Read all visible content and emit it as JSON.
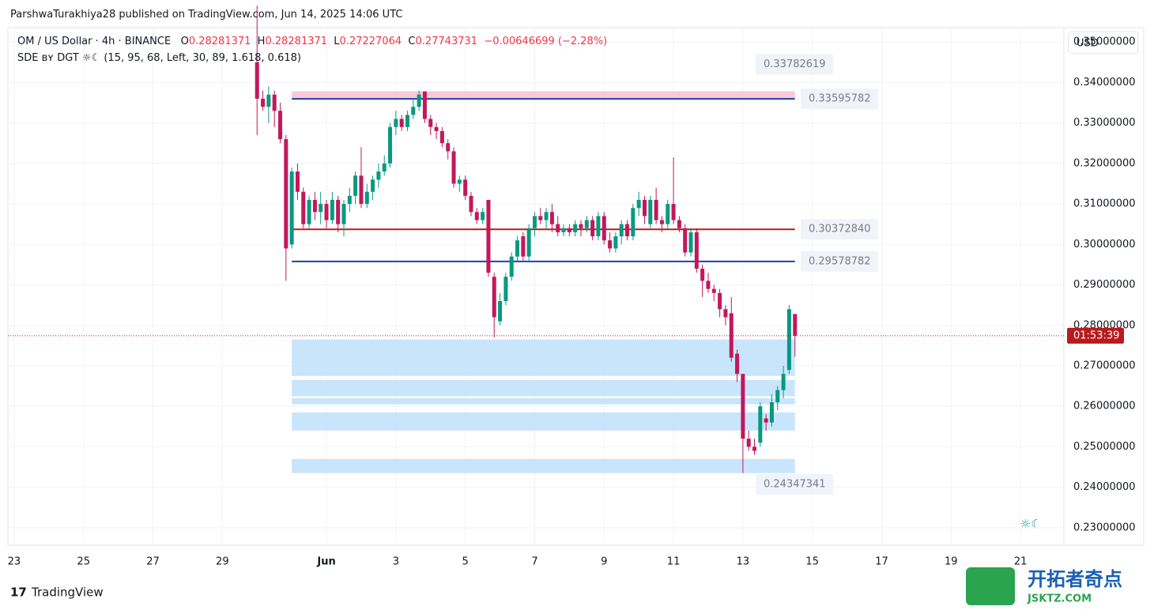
{
  "header": {
    "publisher": "ParshwaTurakhiya28 published on TradingView.com, Jun 14, 2025 14:06 UTC",
    "brand": "TradingView",
    "watermark": "开拓者奇点",
    "watermark_url": "JSKTZ.COM"
  },
  "chart_data": {
    "type": "candlestick",
    "symbol": "OM / US Dollar · 4h · BINANCE",
    "legend_labels": [
      "O",
      "H",
      "L",
      "C"
    ],
    "change": "−0.00646699 (−2.28%)",
    "indicator": "SDE ʙʏ DGT ☼☾ (15, 95, 68, Left, 30, 89, 1.618, 0.618)",
    "indicator_icon": "☼☾",
    "currency": "USD",
    "countdown": "01:53:39",
    "up_color": "#089981",
    "down_color": "#c2185b",
    "x": [
      7,
      7.167,
      7.333,
      7.5,
      7.667,
      7.833,
      8,
      8.167,
      8.333,
      8.5,
      8.667,
      8.833,
      9,
      9.167,
      9.333,
      9.5,
      9.667,
      9.833,
      10,
      10.167,
      10.333,
      10.5,
      10.667,
      10.833,
      11,
      11.167,
      11.333,
      11.5,
      11.667,
      11.833,
      12,
      12.167,
      12.333,
      12.5,
      12.667,
      12.833,
      13,
      13.167,
      13.333,
      13.5,
      13.667,
      13.833,
      14,
      14.167,
      14.333,
      14.5,
      14.667,
      14.833,
      15,
      15.167,
      15.333,
      15.5,
      15.667,
      15.833,
      16,
      16.167,
      16.333,
      16.5,
      16.667,
      16.833,
      17,
      17.167,
      17.333,
      17.5,
      17.667,
      17.833,
      18,
      18.167,
      18.333,
      18.5,
      18.667,
      18.833,
      19,
      19.167,
      19.333,
      19.5,
      19.667,
      19.833,
      20,
      20.167,
      20.333,
      20.5,
      20.667,
      20.833,
      21,
      21.167,
      21.333,
      21.5,
      21.667,
      21.833,
      22,
      22.167,
      22.333,
      22.5
    ],
    "ohlc": [
      [
        0.345,
        0.359,
        0.327,
        0.336
      ],
      [
        0.336,
        0.338,
        0.333,
        0.334
      ],
      [
        0.334,
        0.339,
        0.33,
        0.337
      ],
      [
        0.337,
        0.338,
        0.329,
        0.333
      ],
      [
        0.333,
        0.335,
        0.325,
        0.326
      ],
      [
        0.326,
        0.327,
        0.291,
        0.299
      ],
      [
        0.3,
        0.319,
        0.299,
        0.318
      ],
      [
        0.318,
        0.32,
        0.311,
        0.313
      ],
      [
        0.313,
        0.314,
        0.304,
        0.305
      ],
      [
        0.305,
        0.312,
        0.304,
        0.311
      ],
      [
        0.311,
        0.313,
        0.306,
        0.308
      ],
      [
        0.308,
        0.313,
        0.305,
        0.31
      ],
      [
        0.31,
        0.311,
        0.304,
        0.306
      ],
      [
        0.306,
        0.313,
        0.305,
        0.311
      ],
      [
        0.311,
        0.312,
        0.303,
        0.305
      ],
      [
        0.305,
        0.311,
        0.302,
        0.31
      ],
      [
        0.31,
        0.314,
        0.308,
        0.312
      ],
      [
        0.312,
        0.318,
        0.31,
        0.317
      ],
      [
        0.317,
        0.324,
        0.309,
        0.31
      ],
      [
        0.31,
        0.315,
        0.309,
        0.313
      ],
      [
        0.313,
        0.317,
        0.311,
        0.316
      ],
      [
        0.316,
        0.32,
        0.314,
        0.318
      ],
      [
        0.318,
        0.322,
        0.317,
        0.32
      ],
      [
        0.32,
        0.33,
        0.319,
        0.329
      ],
      [
        0.329,
        0.333,
        0.327,
        0.331
      ],
      [
        0.331,
        0.332,
        0.328,
        0.329
      ],
      [
        0.329,
        0.333,
        0.328,
        0.332
      ],
      [
        0.332,
        0.336,
        0.331,
        0.334
      ],
      [
        0.334,
        0.338,
        0.333,
        0.337
      ],
      [
        0.3378,
        0.3378,
        0.33,
        0.331
      ],
      [
        0.331,
        0.332,
        0.327,
        0.329
      ],
      [
        0.329,
        0.33,
        0.326,
        0.328
      ],
      [
        0.328,
        0.329,
        0.324,
        0.325
      ],
      [
        0.325,
        0.326,
        0.321,
        0.323
      ],
      [
        0.323,
        0.324,
        0.314,
        0.315
      ],
      [
        0.315,
        0.317,
        0.313,
        0.316
      ],
      [
        0.316,
        0.317,
        0.311,
        0.312
      ],
      [
        0.312,
        0.313,
        0.307,
        0.308
      ],
      [
        0.308,
        0.309,
        0.305,
        0.306
      ],
      [
        0.306,
        0.309,
        0.305,
        0.308
      ],
      [
        0.311,
        0.311,
        0.292,
        0.293
      ],
      [
        0.292,
        0.293,
        0.277,
        0.282
      ],
      [
        0.281,
        0.288,
        0.28,
        0.286
      ],
      [
        0.286,
        0.293,
        0.285,
        0.292
      ],
      [
        0.292,
        0.298,
        0.291,
        0.297
      ],
      [
        0.297,
        0.302,
        0.296,
        0.301
      ],
      [
        0.302,
        0.303,
        0.296,
        0.297
      ],
      [
        0.297,
        0.305,
        0.296,
        0.304
      ],
      [
        0.304,
        0.308,
        0.302,
        0.307
      ],
      [
        0.307,
        0.309,
        0.305,
        0.306
      ],
      [
        0.306,
        0.309,
        0.304,
        0.308
      ],
      [
        0.308,
        0.31,
        0.303,
        0.305
      ],
      [
        0.305,
        0.307,
        0.302,
        0.303
      ],
      [
        0.303,
        0.305,
        0.302,
        0.304
      ],
      [
        0.304,
        0.305,
        0.302,
        0.303
      ],
      [
        0.303,
        0.306,
        0.302,
        0.305
      ],
      [
        0.305,
        0.306,
        0.302,
        0.304
      ],
      [
        0.304,
        0.307,
        0.303,
        0.306
      ],
      [
        0.306,
        0.307,
        0.301,
        0.302
      ],
      [
        0.302,
        0.308,
        0.301,
        0.307
      ],
      [
        0.307,
        0.308,
        0.3,
        0.301
      ],
      [
        0.301,
        0.303,
        0.298,
        0.299
      ],
      [
        0.299,
        0.303,
        0.298,
        0.302
      ],
      [
        0.302,
        0.306,
        0.3,
        0.305
      ],
      [
        0.305,
        0.306,
        0.301,
        0.302
      ],
      [
        0.302,
        0.31,
        0.301,
        0.309
      ],
      [
        0.309,
        0.313,
        0.307,
        0.311
      ],
      [
        0.311,
        0.312,
        0.305,
        0.307
      ],
      [
        0.305,
        0.312,
        0.304,
        0.311
      ],
      [
        0.311,
        0.314,
        0.305,
        0.306
      ],
      [
        0.306,
        0.307,
        0.303,
        0.305
      ],
      [
        0.305,
        0.311,
        0.304,
        0.31
      ],
      [
        0.31,
        0.3215,
        0.305,
        0.306
      ],
      [
        0.306,
        0.307,
        0.303,
        0.304
      ],
      [
        0.304,
        0.305,
        0.297,
        0.298
      ],
      [
        0.298,
        0.304,
        0.297,
        0.303
      ],
      [
        0.303,
        0.304,
        0.293,
        0.294
      ],
      [
        0.294,
        0.295,
        0.287,
        0.291
      ],
      [
        0.291,
        0.293,
        0.288,
        0.289
      ],
      [
        0.289,
        0.29,
        0.286,
        0.288
      ],
      [
        0.288,
        0.289,
        0.282,
        0.284
      ],
      [
        0.284,
        0.285,
        0.28,
        0.282
      ],
      [
        0.283,
        0.287,
        0.271,
        0.272
      ],
      [
        0.273,
        0.274,
        0.266,
        0.268
      ],
      [
        0.268,
        0.268,
        0.2435,
        0.252
      ],
      [
        0.252,
        0.254,
        0.249,
        0.25
      ],
      [
        0.25,
        0.252,
        0.248,
        0.249
      ],
      [
        0.251,
        0.261,
        0.25,
        0.26
      ],
      [
        0.257,
        0.258,
        0.254,
        0.256
      ],
      [
        0.256,
        0.263,
        0.255,
        0.261
      ],
      [
        0.261,
        0.265,
        0.259,
        0.264
      ],
      [
        0.264,
        0.27,
        0.262,
        0.268
      ],
      [
        0.269,
        0.285,
        0.268,
        0.284
      ],
      [
        0.28281371,
        0.28281371,
        0.27227064,
        0.27743731
      ]
    ],
    "levels": [
      {
        "value": 0.33782619,
        "label": "0.33782619"
      },
      {
        "value": 0.33595782,
        "label": "0.33595782"
      },
      {
        "value": 0.3037284,
        "label": "0.30372840"
      },
      {
        "value": 0.29578782,
        "label": "0.29578782"
      },
      {
        "value": 0.24347341,
        "label": "0.24347341"
      }
    ],
    "zones": [
      [
        0.2675,
        0.2765
      ],
      [
        0.2625,
        0.2665
      ],
      [
        0.2605,
        0.262
      ],
      [
        0.254,
        0.2585
      ],
      [
        0.2435,
        0.247
      ]
    ],
    "ylim": [
      0.35355,
      0.22568
    ],
    "yticks": [
      {
        "value": 0.35,
        "label": "0.35000000"
      },
      {
        "value": 0.34,
        "label": "0.34000000"
      },
      {
        "value": 0.33,
        "label": "0.33000000"
      },
      {
        "value": 0.32,
        "label": "0.32000000"
      },
      {
        "value": 0.31,
        "label": "0.31000000"
      },
      {
        "value": 0.3,
        "label": "0.30000000"
      },
      {
        "value": 0.29,
        "label": "0.29000000"
      },
      {
        "value": 0.28,
        "label": "0.28000000"
      },
      {
        "value": 0.27,
        "label": "0.27000000"
      },
      {
        "value": 0.26,
        "label": "0.26000000"
      },
      {
        "value": 0.25,
        "label": "0.25000000"
      },
      {
        "value": 0.24,
        "label": "0.24000000"
      },
      {
        "value": 0.23,
        "label": "0.23000000"
      }
    ],
    "xlim": [
      -0.18,
      30.25
    ],
    "xticks": [
      {
        "value": 0,
        "label": "23"
      },
      {
        "value": 2,
        "label": "25"
      },
      {
        "value": 4,
        "label": "27"
      },
      {
        "value": 6,
        "label": "29"
      },
      {
        "value": 9,
        "label": "Jun"
      },
      {
        "value": 11,
        "label": "3"
      },
      {
        "value": 13,
        "label": "5"
      },
      {
        "value": 15,
        "label": "7"
      },
      {
        "value": 17,
        "label": "9"
      },
      {
        "value": 19,
        "label": "11"
      },
      {
        "value": 21,
        "label": "13"
      },
      {
        "value": 23,
        "label": "15"
      },
      {
        "value": 25,
        "label": "17"
      },
      {
        "value": 27,
        "label": "19"
      },
      {
        "value": 29,
        "label": "21"
      }
    ],
    "grid": true
  }
}
